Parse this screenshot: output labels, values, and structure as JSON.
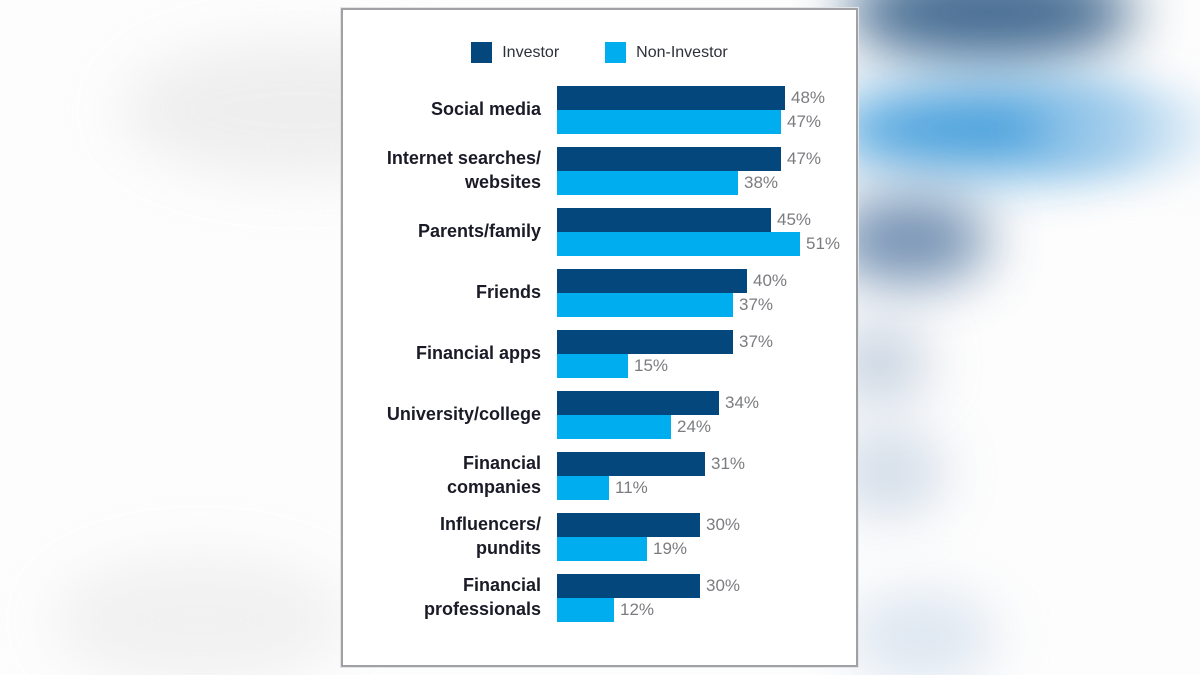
{
  "legend": {
    "position": "top"
  },
  "chart_data": {
    "type": "bar",
    "orientation": "horizontal",
    "title": "",
    "xlabel": "",
    "ylabel": "",
    "categories": [
      "Social media",
      "Internet searches/websites",
      "Parents/family",
      "Friends",
      "Financial apps",
      "University/college",
      "Financial companies",
      "Influencers/pundits",
      "Financial professionals"
    ],
    "category_lines": [
      [
        "Social media"
      ],
      [
        "Internet searches/",
        "websites"
      ],
      [
        "Parents/family"
      ],
      [
        "Friends"
      ],
      [
        "Financial apps"
      ],
      [
        "University/college"
      ],
      [
        "Financial",
        "companies"
      ],
      [
        "Influencers/",
        "pundits"
      ],
      [
        "Financial",
        "professionals"
      ]
    ],
    "series": [
      {
        "name": "Investor",
        "color": "#04477c",
        "values": [
          48,
          47,
          45,
          40,
          37,
          34,
          31,
          30,
          30
        ]
      },
      {
        "name": "Non-Investor",
        "color": "#00aeef",
        "values": [
          47,
          38,
          51,
          37,
          15,
          24,
          11,
          19,
          12
        ]
      }
    ],
    "value_suffix": "%",
    "xlim": [
      0,
      51
    ],
    "grid": false,
    "legend_position": "top",
    "category_label_color": "#1b1b28",
    "value_label_color": "#7b7c80"
  }
}
